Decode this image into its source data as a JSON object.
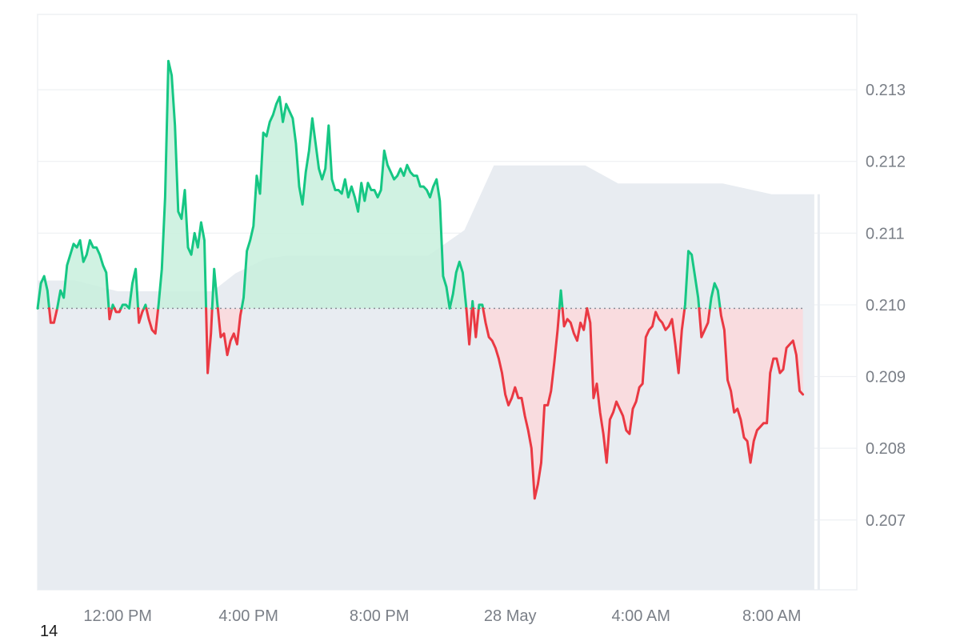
{
  "corner_label": "14",
  "colors": {
    "up": "#16c784",
    "down": "#ea3943",
    "up_fill": "#c8f0dd",
    "down_fill": "#fbd9dc",
    "grid": "#eef0f3",
    "baseline": "#8a8f98",
    "volume": "#e8ecf1"
  },
  "chart_data": {
    "type": "area",
    "baseline": 0.20995,
    "ylim": [
      0.20635,
      0.21405
    ],
    "y_ticks": [
      "0.213",
      "0.212",
      "0.211",
      "0.210",
      "0.209",
      "0.208",
      "0.207"
    ],
    "y_tick_values": [
      0.213,
      0.212,
      0.211,
      0.21,
      0.209,
      0.208,
      0.207
    ],
    "x_ticks": [
      "12:00 PM",
      "4:00 PM",
      "8:00 PM",
      "28 May",
      "4:00 AM",
      "8:00 AM"
    ],
    "x_tick_hours": [
      12,
      16,
      20,
      24,
      28,
      32
    ],
    "xlim": [
      9.55,
      34.6
    ],
    "x_start": 9.55,
    "x_step": 0.1,
    "series": [
      {
        "values": [
          0.20995,
          0.2103,
          0.2104,
          0.2102,
          0.20975,
          0.20975,
          0.20995,
          0.2102,
          0.2101,
          0.21055,
          0.2107,
          0.21085,
          0.2108,
          0.2109,
          0.2106,
          0.2107,
          0.2109,
          0.2108,
          0.2108,
          0.2107,
          0.21055,
          0.21045,
          0.2098,
          0.21,
          0.2099,
          0.2099,
          0.21,
          0.21,
          0.20995,
          0.2103,
          0.2105,
          0.20975,
          0.2099,
          0.21,
          0.2098,
          0.20965,
          0.2096,
          0.21,
          0.2105,
          0.2115,
          0.2134,
          0.2132,
          0.2125,
          0.2113,
          0.2112,
          0.2116,
          0.2108,
          0.2107,
          0.211,
          0.2108,
          0.21115,
          0.2109,
          0.20905,
          0.2096,
          0.2105,
          0.21,
          0.20955,
          0.2096,
          0.2093,
          0.2095,
          0.2096,
          0.20945,
          0.20985,
          0.2101,
          0.21075,
          0.2109,
          0.2111,
          0.2118,
          0.21155,
          0.2124,
          0.21235,
          0.21255,
          0.21265,
          0.2128,
          0.2129,
          0.21255,
          0.2128,
          0.2127,
          0.2126,
          0.21225,
          0.21165,
          0.2114,
          0.21185,
          0.21215,
          0.2126,
          0.21225,
          0.2119,
          0.21175,
          0.2119,
          0.2125,
          0.21175,
          0.2116,
          0.2116,
          0.21155,
          0.21175,
          0.2115,
          0.21165,
          0.2115,
          0.2113,
          0.2117,
          0.21145,
          0.2117,
          0.2116,
          0.2116,
          0.2115,
          0.2116,
          0.21215,
          0.21195,
          0.21185,
          0.21175,
          0.2118,
          0.2119,
          0.2118,
          0.21195,
          0.21185,
          0.2118,
          0.2118,
          0.21165,
          0.21165,
          0.2116,
          0.2115,
          0.21165,
          0.21175,
          0.21145,
          0.2104,
          0.21025,
          0.20995,
          0.21015,
          0.21045,
          0.2106,
          0.21045,
          0.21,
          0.20945,
          0.21005,
          0.20955,
          0.21,
          0.21,
          0.20975,
          0.20955,
          0.2095,
          0.2094,
          0.20925,
          0.20905,
          0.20875,
          0.2086,
          0.2087,
          0.20885,
          0.2087,
          0.2087,
          0.20845,
          0.20825,
          0.208,
          0.2073,
          0.2075,
          0.2078,
          0.2086,
          0.2086,
          0.2088,
          0.2092,
          0.20965,
          0.2102,
          0.2097,
          0.2098,
          0.20975,
          0.2096,
          0.2095,
          0.20975,
          0.20965,
          0.20995,
          0.20975,
          0.2087,
          0.2089,
          0.2085,
          0.2082,
          0.2078,
          0.2084,
          0.2085,
          0.20865,
          0.20855,
          0.20845,
          0.20825,
          0.2082,
          0.20855,
          0.20865,
          0.20885,
          0.2089,
          0.20955,
          0.20965,
          0.2097,
          0.2099,
          0.2098,
          0.20975,
          0.20965,
          0.2097,
          0.2098,
          0.20945,
          0.20905,
          0.20965,
          0.21,
          0.21075,
          0.2107,
          0.2104,
          0.2101,
          0.20955,
          0.20965,
          0.20975,
          0.2101,
          0.2103,
          0.2102,
          0.20985,
          0.20965,
          0.20895,
          0.2088,
          0.2085,
          0.20855,
          0.2084,
          0.20815,
          0.2081,
          0.2078,
          0.2081,
          0.20825,
          0.2083,
          0.20835,
          0.20835,
          0.20905,
          0.20925,
          0.20925,
          0.20905,
          0.2091,
          0.2094,
          0.20945,
          0.2095,
          0.2093,
          0.2088,
          0.20875
        ]
      }
    ],
    "volume": {
      "x_end": 33.3,
      "points": [
        [
          9.55,
          0.086
        ],
        [
          10.7,
          0.086
        ],
        [
          12.0,
          0.083
        ],
        [
          14.9,
          0.083
        ],
        [
          15.6,
          0.088
        ],
        [
          16.5,
          0.092
        ],
        [
          17.2,
          0.093
        ],
        [
          21.5,
          0.093
        ],
        [
          22.6,
          0.1
        ],
        [
          23.5,
          0.118
        ],
        [
          26.3,
          0.118
        ],
        [
          27.3,
          0.113
        ],
        [
          30.5,
          0.113
        ],
        [
          32.0,
          0.11
        ],
        [
          33.3,
          0.11
        ]
      ],
      "ylim": [
        0,
        0.16
      ]
    }
  }
}
